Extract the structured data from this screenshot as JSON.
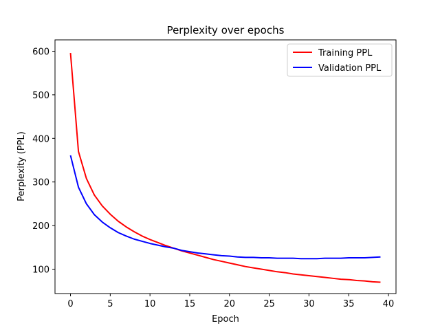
{
  "chart_data": {
    "type": "line",
    "title": "Perplexity over epochs",
    "xlabel": "Epoch",
    "ylabel": "Perplexity (PPL)",
    "xlim": [
      -1.95,
      40.95
    ],
    "ylim": [
      44,
      626
    ],
    "xticks": [
      0,
      5,
      10,
      15,
      20,
      25,
      30,
      35,
      40
    ],
    "yticks": [
      100,
      200,
      300,
      400,
      500,
      600
    ],
    "grid": false,
    "legend": "top-right",
    "x": [
      0,
      1,
      2,
      3,
      4,
      5,
      6,
      7,
      8,
      9,
      10,
      11,
      12,
      13,
      14,
      15,
      16,
      17,
      18,
      19,
      20,
      21,
      22,
      23,
      24,
      25,
      26,
      27,
      28,
      29,
      30,
      31,
      32,
      33,
      34,
      35,
      36,
      37,
      38,
      39
    ],
    "series": [
      {
        "name": "Training PPL",
        "color": "#ff0000",
        "values": [
          596,
          370,
          308,
          270,
          245,
          226,
          210,
          197,
          186,
          176,
          168,
          161,
          154,
          148,
          142,
          137,
          132,
          127,
          122,
          118,
          114,
          110,
          106,
          103,
          100,
          97,
          94,
          92,
          89,
          87,
          85,
          83,
          81,
          79,
          77,
          76,
          74,
          73,
          71,
          70
        ]
      },
      {
        "name": "Validation PPL",
        "color": "#0000ff",
        "values": [
          361,
          288,
          250,
          225,
          208,
          195,
          184,
          176,
          169,
          164,
          159,
          155,
          151,
          148,
          143,
          140,
          137,
          135,
          133,
          131,
          130,
          128,
          127,
          127,
          126,
          126,
          125,
          125,
          125,
          124,
          124,
          124,
          125,
          125,
          125,
          126,
          126,
          126,
          127,
          128
        ]
      }
    ]
  }
}
